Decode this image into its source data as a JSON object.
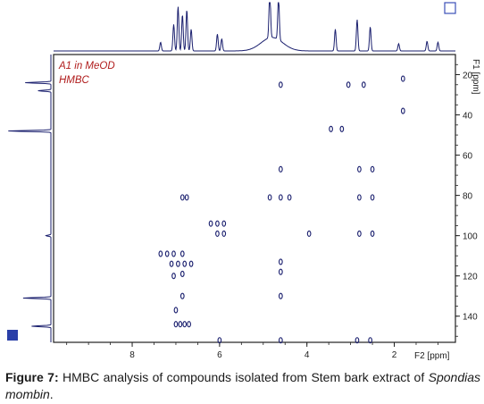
{
  "figure": {
    "label": "Figure 7:",
    "caption": "HMBC analysis of compounds isolated from Stem bark extract of",
    "species": "Spondias mombin",
    "species_end": "."
  },
  "colors": {
    "trace": "#1a1f6e",
    "frame": "#202020",
    "annotation": "#b01c1c"
  },
  "chart_data": {
    "type": "scatter",
    "annotations": [
      "A1 in MeOD",
      "HMBC"
    ],
    "x_axis": {
      "label": "F2 [ppm]",
      "ticks": [
        8,
        6,
        4,
        2
      ],
      "range": [
        9.8,
        0.6
      ]
    },
    "y_axis": {
      "label": "F1 [ppm]",
      "ticks": [
        20,
        40,
        60,
        80,
        100,
        120,
        140
      ],
      "range": [
        10,
        153
      ]
    },
    "projection_f2_peaks": [
      {
        "ppm": 7.35,
        "height": 0.18
      },
      {
        "ppm": 7.05,
        "height": 0.55
      },
      {
        "ppm": 6.95,
        "height": 0.92
      },
      {
        "ppm": 6.85,
        "height": 0.75
      },
      {
        "ppm": 6.75,
        "height": 0.85
      },
      {
        "ppm": 6.65,
        "height": 0.45
      },
      {
        "ppm": 6.05,
        "height": 0.35
      },
      {
        "ppm": 5.95,
        "height": 0.25
      },
      {
        "ppm": 4.85,
        "height": 1.0
      },
      {
        "ppm": 4.65,
        "height": 0.9
      },
      {
        "ppm": 3.35,
        "height": 0.45
      },
      {
        "ppm": 2.85,
        "height": 0.65
      },
      {
        "ppm": 2.55,
        "height": 0.5
      },
      {
        "ppm": 1.9,
        "height": 0.15
      },
      {
        "ppm": 1.25,
        "height": 0.2
      },
      {
        "ppm": 1.0,
        "height": 0.18
      }
    ],
    "projection_f1_peaks": [
      {
        "ppm": 24,
        "height": 0.6
      },
      {
        "ppm": 28,
        "height": 0.3
      },
      {
        "ppm": 48,
        "height": 1.0
      },
      {
        "ppm": 100,
        "height": 0.12
      },
      {
        "ppm": 131,
        "height": 0.65
      },
      {
        "ppm": 145,
        "height": 0.45
      }
    ],
    "cross_peaks": [
      {
        "x": 1.8,
        "y": 22
      },
      {
        "x": 1.8,
        "y": 38
      },
      {
        "x": 4.6,
        "y": 25
      },
      {
        "x": 3.05,
        "y": 25
      },
      {
        "x": 2.7,
        "y": 25
      },
      {
        "x": 3.45,
        "y": 47
      },
      {
        "x": 3.2,
        "y": 47
      },
      {
        "x": 4.6,
        "y": 67
      },
      {
        "x": 2.8,
        "y": 67
      },
      {
        "x": 2.5,
        "y": 67
      },
      {
        "x": 6.85,
        "y": 81
      },
      {
        "x": 6.75,
        "y": 81
      },
      {
        "x": 4.85,
        "y": 81
      },
      {
        "x": 4.6,
        "y": 81
      },
      {
        "x": 4.4,
        "y": 81
      },
      {
        "x": 2.8,
        "y": 81
      },
      {
        "x": 2.5,
        "y": 81
      },
      {
        "x": 6.2,
        "y": 94
      },
      {
        "x": 6.05,
        "y": 94
      },
      {
        "x": 5.9,
        "y": 94
      },
      {
        "x": 6.05,
        "y": 99
      },
      {
        "x": 5.9,
        "y": 99
      },
      {
        "x": 3.95,
        "y": 99
      },
      {
        "x": 2.8,
        "y": 99
      },
      {
        "x": 2.5,
        "y": 99
      },
      {
        "x": 7.35,
        "y": 109
      },
      {
        "x": 7.2,
        "y": 109
      },
      {
        "x": 7.05,
        "y": 109
      },
      {
        "x": 6.85,
        "y": 109
      },
      {
        "x": 7.1,
        "y": 114
      },
      {
        "x": 6.95,
        "y": 114
      },
      {
        "x": 6.8,
        "y": 114
      },
      {
        "x": 6.65,
        "y": 114
      },
      {
        "x": 6.85,
        "y": 119
      },
      {
        "x": 7.05,
        "y": 120
      },
      {
        "x": 4.6,
        "y": 113
      },
      {
        "x": 4.6,
        "y": 118
      },
      {
        "x": 6.85,
        "y": 130
      },
      {
        "x": 4.6,
        "y": 130
      },
      {
        "x": 7.0,
        "y": 137
      },
      {
        "x": 7.0,
        "y": 144
      },
      {
        "x": 6.9,
        "y": 144
      },
      {
        "x": 6.8,
        "y": 144
      },
      {
        "x": 6.7,
        "y": 144
      },
      {
        "x": 6.0,
        "y": 152
      },
      {
        "x": 4.6,
        "y": 152
      },
      {
        "x": 2.85,
        "y": 152
      },
      {
        "x": 2.55,
        "y": 152
      }
    ]
  }
}
